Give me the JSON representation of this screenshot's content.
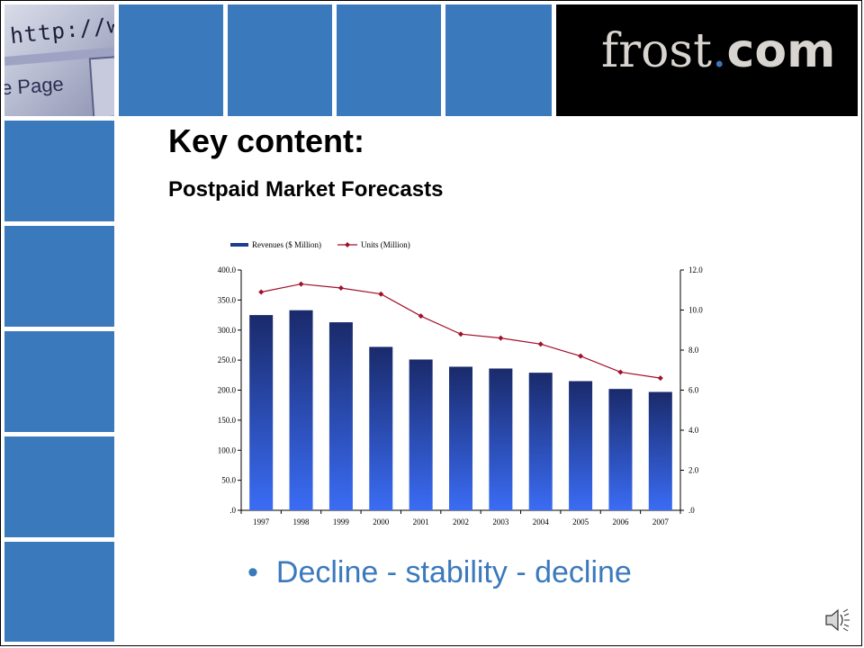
{
  "slide": {
    "title": "Key content:",
    "subtitle": "Postpaid Market Forecasts",
    "bullet": "Decline - stability - decline",
    "logo": {
      "name": "frost",
      "dot": ".",
      "tld": "com"
    },
    "banner_text": {
      "url": "http://ww",
      "page": "e Page"
    }
  },
  "colors": {
    "accent": "#3b79bd",
    "bar_top": "#1a2a6b",
    "bar_bottom": "#3a6cf4",
    "line": "#a0102a"
  },
  "chart_data": {
    "type": "bar",
    "categories": [
      "1997",
      "1998",
      "1999",
      "2000",
      "2001",
      "2002",
      "2003",
      "2004",
      "2005",
      "2006",
      "2007"
    ],
    "series": [
      {
        "name": "Revenues ($ Million)",
        "type": "bar",
        "axis": "left",
        "values": [
          325,
          333,
          313,
          272,
          251,
          239,
          236,
          229,
          215,
          202,
          197
        ]
      },
      {
        "name": "Units (Million)",
        "type": "line",
        "axis": "right",
        "values": [
          10.9,
          11.3,
          11.1,
          10.8,
          9.7,
          8.8,
          8.6,
          8.3,
          7.7,
          6.9,
          6.6
        ]
      }
    ],
    "y_left": {
      "min": 0,
      "max": 400,
      "ticks": [
        ".0",
        "50.0",
        "100.0",
        "150.0",
        "200.0",
        "250.0",
        "300.0",
        "350.0",
        "400.0"
      ]
    },
    "y_right": {
      "min": 0,
      "max": 12,
      "ticks": [
        ".0",
        "2.0",
        "4.0",
        "6.0",
        "8.0",
        "10.0",
        "12.0"
      ]
    },
    "legend_position": "top",
    "grid": false
  }
}
